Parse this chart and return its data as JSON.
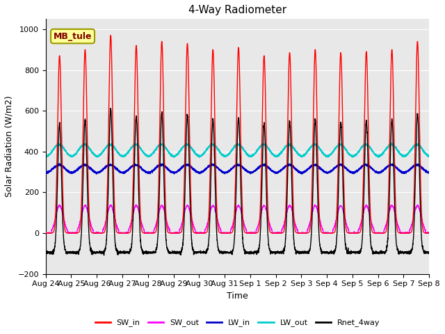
{
  "title": "4-Way Radiometer",
  "xlabel": "Time",
  "ylabel": "Solar Radiation (W/m2)",
  "ylim": [
    -200,
    1050
  ],
  "xlim_hours": 360,
  "background_color": "#e8e8e8",
  "label_color": "#800000",
  "annotation_text": "MB_tule",
  "annotation_bg": "#ffff99",
  "annotation_border": "#999900",
  "x_tick_labels": [
    "Aug 24",
    "Aug 25",
    "Aug 26",
    "Aug 27",
    "Aug 28",
    "Aug 29",
    "Aug 30",
    "Aug 31",
    "Sep 1",
    "Sep 2",
    "Sep 3",
    "Sep 4",
    "Sep 5",
    "Sep 6",
    "Sep 7",
    "Sep 8"
  ],
  "colors": {
    "SW_in": "#ff0000",
    "SW_out": "#ff00ff",
    "LW_in": "#0000cc",
    "LW_out": "#00cccc",
    "Rnet_4way": "#000000"
  },
  "linewidth": 1.0,
  "num_days": 15,
  "hours_per_day": 24,
  "dt_hours": 0.1
}
